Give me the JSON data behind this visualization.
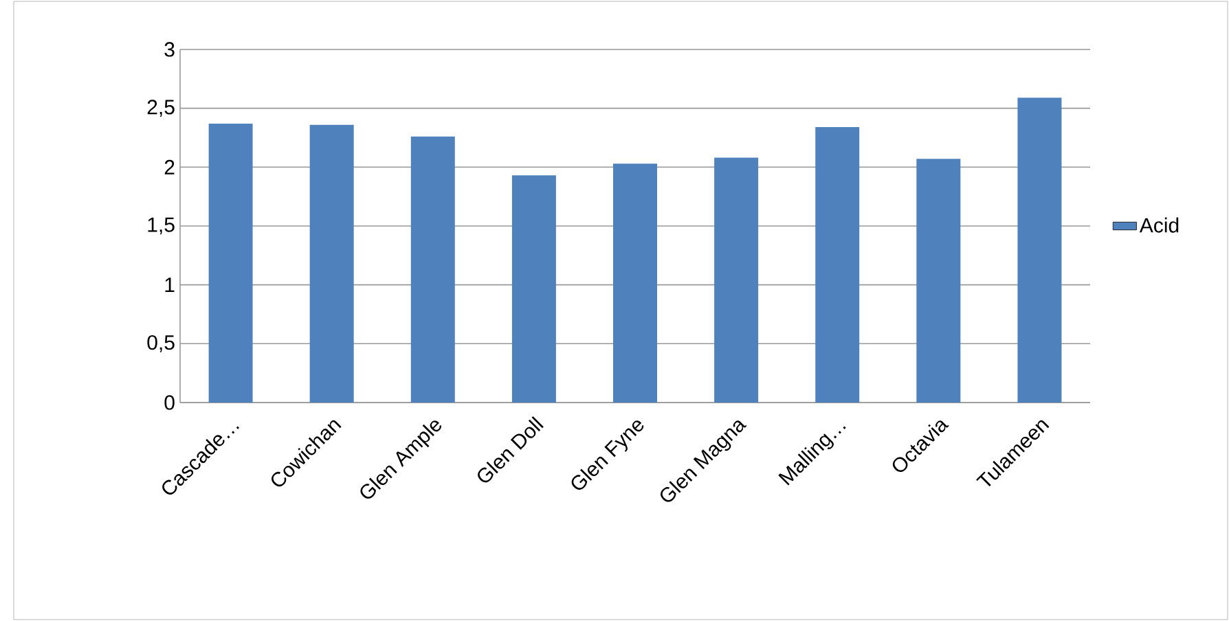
{
  "chart_data": {
    "type": "bar",
    "categories": [
      "Cascade…",
      "Cowichan",
      "Glen Ample",
      "Glen Doll",
      "Glen Fyne",
      "Glen Magna",
      "Malling…",
      "Octavia",
      "Tulameen"
    ],
    "series": [
      {
        "name": "Acid",
        "color": "#4f81bd",
        "values": [
          2.37,
          2.36,
          2.26,
          1.93,
          2.03,
          2.08,
          2.34,
          2.07,
          2.59
        ]
      }
    ],
    "ylim": [
      0,
      3
    ],
    "yticks": [
      0,
      {
        "value": 0.5,
        "label": "0,5"
      },
      1,
      {
        "value": 1.5,
        "label": "1,5"
      },
      2,
      {
        "value": 2.5,
        "label": "2,5"
      },
      3
    ],
    "grid": "y",
    "legend": "right"
  }
}
